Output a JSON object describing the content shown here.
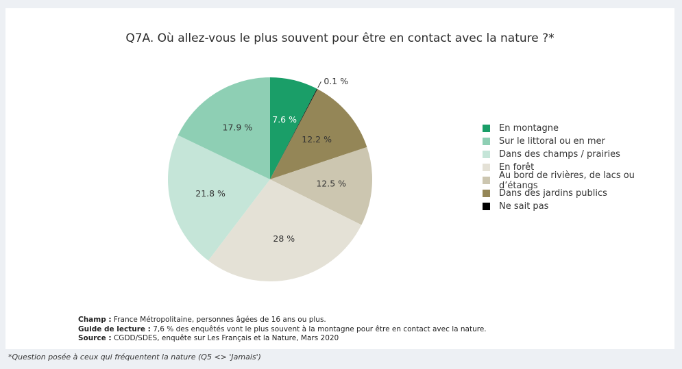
{
  "chart_data": {
    "type": "pie",
    "title": "Q7A. Où allez-vous le plus souvent pour être en contact avec la nature ?*",
    "slices": [
      {
        "name": "En montagne",
        "value": 7.6,
        "label": "7.6 %",
        "color": "#1a9e68",
        "label_color": "#ffffff"
      },
      {
        "name": "Ne sait pas",
        "value": 0.1,
        "label": "0.1 %",
        "color": "#000000",
        "label_color": "#333333"
      },
      {
        "name": "Dans des jardins publics",
        "value": 12.2,
        "label": "12.2 %",
        "color": "#948657",
        "label_color": "#333333"
      },
      {
        "name": "Au bord de rivières, de lacs ou d’étangs",
        "value": 12.5,
        "label": "12.5 %",
        "color": "#ccc6b0",
        "label_color": "#333333"
      },
      {
        "name": "En forêt",
        "value": 28,
        "label": "28 %",
        "color": "#e4e1d6",
        "label_color": "#333333"
      },
      {
        "name": "Dans des champs / prairies",
        "value": 21.8,
        "label": "21.8 %",
        "color": "#c5e5d8",
        "label_color": "#333333"
      },
      {
        "name": "Sur le littoral ou en mer",
        "value": 17.9,
        "label": "17.9 %",
        "color": "#8ecfb4",
        "label_color": "#333333"
      }
    ],
    "legend": {
      "placement": "right",
      "items": [
        {
          "name": "En montagne",
          "color": "#1a9e68"
        },
        {
          "name": "Sur le littoral ou en mer",
          "color": "#8ecfb4"
        },
        {
          "name": "Dans des champs / prairies",
          "color": "#c5e5d8"
        },
        {
          "name": "En forêt",
          "color": "#e4e1d6"
        },
        {
          "name": "Au bord de rivières, de lacs ou d’étangs",
          "color": "#ccc6b0"
        },
        {
          "name": "Dans des jardins publics",
          "color": "#948657"
        },
        {
          "name": "Ne sait pas",
          "color": "#000000"
        }
      ]
    }
  },
  "notes": {
    "champ_label": "Champ :",
    "champ_text": " France Métropolitaine, personnes âgées de 16 ans ou plus.",
    "guide_label": "Guide de lecture :",
    "guide_text": " 7,6 % des enquêtés vont le plus souvent à la montagne pour être en contact avec la nature.",
    "source_label": "Source :",
    "source_text": " CGDD/SDES, enquête sur Les Français et la Nature, Mars 2020"
  },
  "footnote": "*Question posée à ceux qui fréquentent la nature (Q5 <> 'Jamais')"
}
